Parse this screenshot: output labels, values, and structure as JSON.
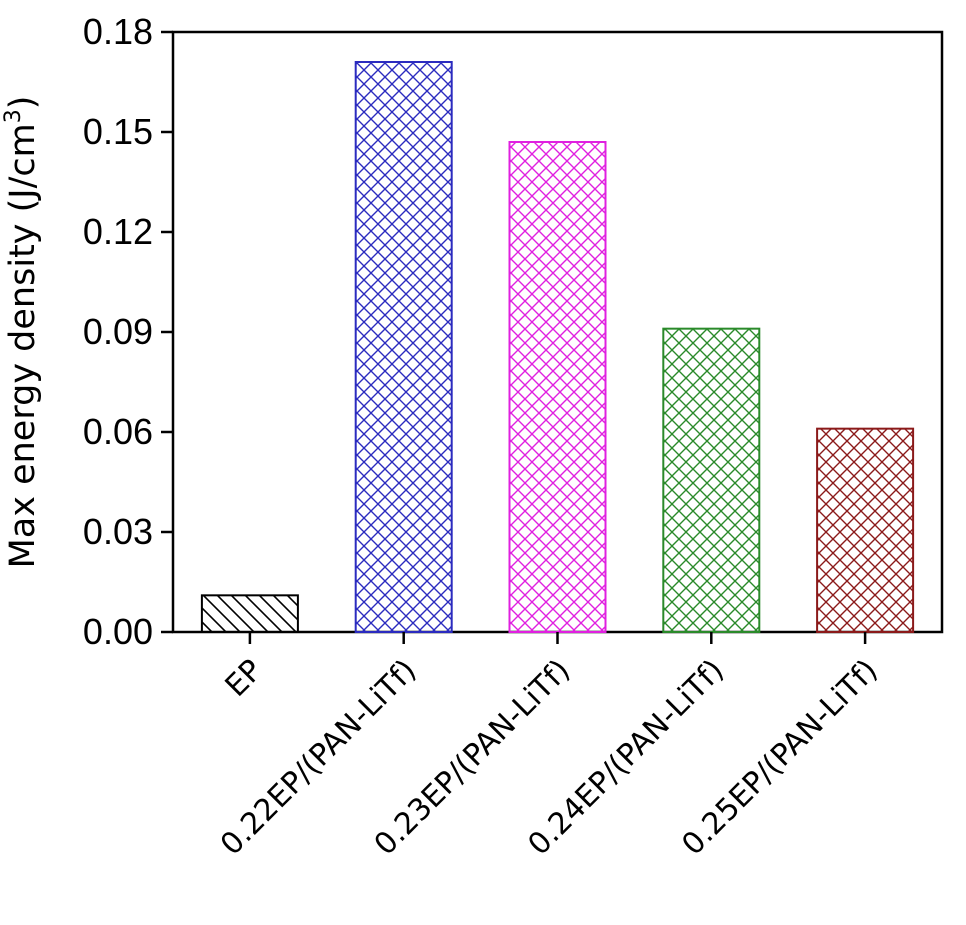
{
  "chart_data": {
    "type": "bar",
    "categories": [
      "EP",
      "0.22EP/(PAN-LiTf)",
      "0.23EP/(PAN-LiTf)",
      "0.24EP/(PAN-LiTf)",
      "0.25EP/(PAN-LiTf)"
    ],
    "values": [
      0.011,
      0.171,
      0.147,
      0.091,
      0.061
    ],
    "ylabel": "Max energy density (J/cm",
    "ylabel_superscript": "3",
    "ylabel_suffix": ")",
    "ylim": [
      0,
      0.18
    ],
    "yticks": [
      "0.00",
      "0.03",
      "0.06",
      "0.09",
      "0.12",
      "0.15",
      "0.18"
    ],
    "bar_colors": [
      "#000000",
      "#2b2bbf",
      "#e020e0",
      "#2a8a2a",
      "#8b1a1a"
    ],
    "bar_patterns": [
      "diagonal",
      "crosshatch",
      "crosshatch",
      "crosshatch",
      "crosshatch"
    ],
    "grid": false,
    "legend": "none"
  }
}
